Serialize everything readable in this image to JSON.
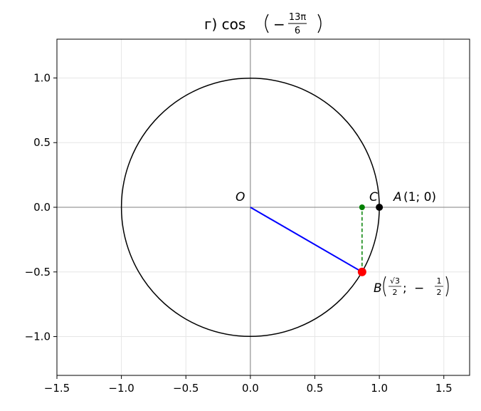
{
  "chart_data": {
    "type": "scatter",
    "title": {
      "prefix": "г) cos",
      "sign": "−",
      "numerator": "13π",
      "denominator": "6"
    },
    "xlabel": "",
    "ylabel": "",
    "xlim": [
      -1.5,
      1.7
    ],
    "ylim": [
      -1.3,
      1.3
    ],
    "grid": true,
    "x_ticks": [
      -1.5,
      -1.0,
      -0.5,
      0.0,
      0.5,
      1.0,
      1.5
    ],
    "x_tick_labels": [
      "−1.5",
      "−1.0",
      "−0.5",
      "0.0",
      "0.5",
      "1.0",
      "1.5"
    ],
    "y_ticks": [
      -1.0,
      -0.5,
      0.0,
      0.5,
      1.0
    ],
    "y_tick_labels": [
      "−1.0",
      "−0.5",
      "0.0",
      "0.5",
      "1.0"
    ],
    "unit_circle": {
      "center": [
        0,
        0
      ],
      "radius": 1,
      "color": "#000000"
    },
    "points": [
      {
        "id": "O",
        "x": 0,
        "y": 0,
        "marker": false,
        "label": "O"
      },
      {
        "id": "A",
        "x": 1,
        "y": 0,
        "marker": true,
        "color": "#000000",
        "label_name": "A",
        "label_coords": "(1; 0)"
      },
      {
        "id": "B",
        "x": 0.866,
        "y": -0.5,
        "marker": true,
        "color": "#ff0000",
        "label_name": "B",
        "label_x_num": "√3",
        "label_x_den": "2",
        "label_sep": ";",
        "label_y_sign": "−",
        "label_y_num": "1",
        "label_y_den": "2"
      },
      {
        "id": "C",
        "x": 0.866,
        "y": 0,
        "marker": true,
        "color": "#008000",
        "label": "C"
      }
    ],
    "segments": [
      {
        "id": "radius",
        "from": [
          0,
          0
        ],
        "to": [
          0.866,
          -0.5
        ],
        "color": "#0000ff",
        "dashed": false
      },
      {
        "id": "projection",
        "from": [
          0.866,
          -0.5
        ],
        "to": [
          0.866,
          0
        ],
        "color": "#008000",
        "dashed": true
      }
    ]
  }
}
